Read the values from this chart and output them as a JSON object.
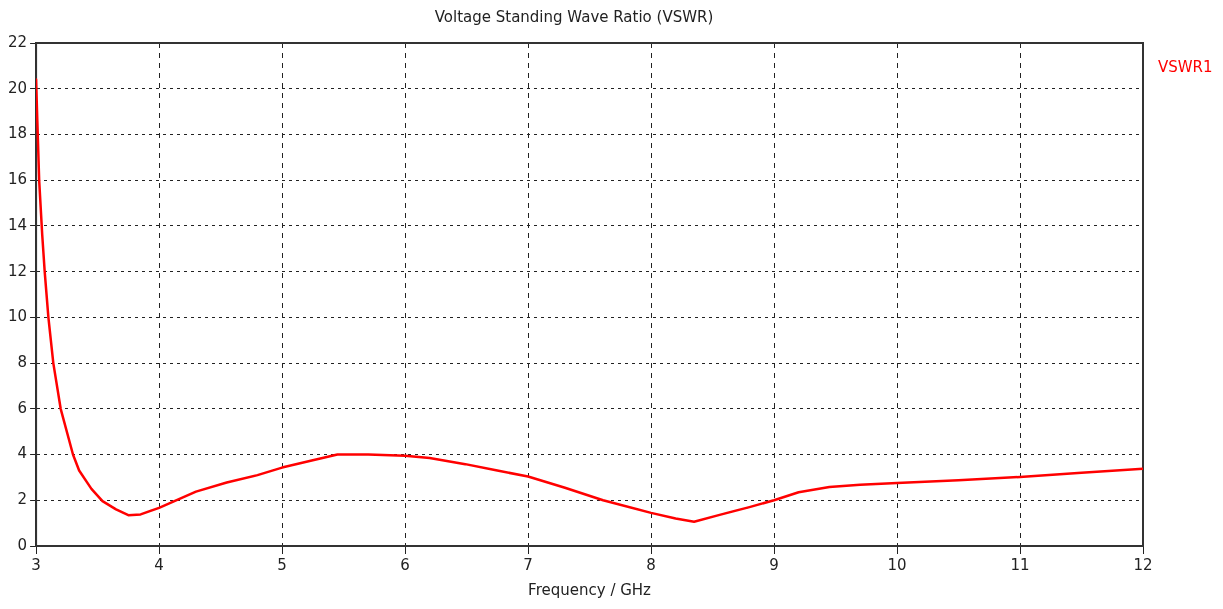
{
  "chart_data": {
    "type": "line",
    "title": "Voltage Standing Wave Ratio (VSWR)",
    "xlabel": "Frequency / GHz",
    "xlim": [
      3,
      12
    ],
    "xticks": [
      3,
      4,
      5,
      6,
      7,
      8,
      9,
      10,
      11,
      12
    ],
    "ylim": [
      0,
      22
    ],
    "yticks": [
      0,
      2,
      4,
      6,
      8,
      10,
      12,
      14,
      16,
      18,
      20,
      22
    ],
    "grid": true,
    "legend": "top right",
    "marker": "none",
    "line_style": "solid",
    "series": [
      {
        "name": "VSWR1",
        "color": "#ff0000",
        "x": [
          3,
          3.01,
          3.025,
          3.05,
          3.07,
          3.1,
          3.14,
          3.2,
          3.3,
          3.35,
          3.45,
          3.54,
          3.65,
          3.75,
          3.85,
          4,
          4.3,
          4.55,
          4.8,
          5,
          5.25,
          5.45,
          5.7,
          6,
          6.2,
          6.49,
          6.75,
          7,
          7.3,
          7.61,
          8,
          8.2,
          8.35,
          8.55,
          8.8,
          9,
          9.2,
          9.45,
          9.7,
          10,
          10.5,
          11,
          11.5,
          12
        ],
        "values": [
          20.4,
          18.6,
          16,
          13.6,
          12,
          10,
          8,
          6,
          4,
          3.3,
          2.5,
          1.96,
          1.6,
          1.35,
          1.38,
          1.67,
          2.38,
          2.78,
          3.1,
          3.43,
          3.75,
          4.0,
          4.0,
          3.95,
          3.85,
          3.58,
          3.3,
          3.04,
          2.55,
          2.0,
          1.45,
          1.2,
          1.06,
          1.35,
          1.7,
          2.0,
          2.35,
          2.58,
          2.68,
          2.76,
          2.88,
          3.02,
          3.2,
          3.38
        ]
      }
    ]
  }
}
